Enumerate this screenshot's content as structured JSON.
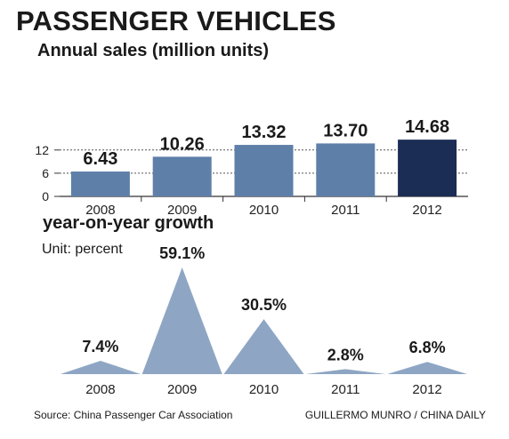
{
  "title": "PASSENGER VEHICLES",
  "sales_subtitle": "Annual sales (million units)",
  "growth_subtitle": "year-on-year growth",
  "growth_unit": "Unit: percent",
  "source": "Source: China Passenger Car Association",
  "credit": "GUILLERMO MUNRO / CHINA DAILY",
  "colors": {
    "bar": "#5e7fa8",
    "bar_highlight": "#1b2c55",
    "triangle": "#8ea6c4",
    "axis": "#333333"
  },
  "chart_data": [
    {
      "type": "bar",
      "title": "Annual sales (million units)",
      "categories": [
        "2008",
        "2009",
        "2010",
        "2011",
        "2012"
      ],
      "values": [
        6.43,
        10.26,
        13.32,
        13.7,
        14.68
      ],
      "value_labels": [
        "6.43",
        "10.26",
        "13.32",
        "13.70",
        "14.68"
      ],
      "yticks": [
        0,
        6,
        12
      ],
      "ylim": [
        0,
        20
      ],
      "grid": "dashed at 6 and 12",
      "highlight": "2012"
    },
    {
      "type": "area",
      "title": "year-on-year growth",
      "unit": "Unit: percent",
      "categories": [
        "2008",
        "2009",
        "2010",
        "2011",
        "2012"
      ],
      "values": [
        7.4,
        59.1,
        30.5,
        2.8,
        6.8
      ],
      "value_labels": [
        "7.4%",
        "59.1%",
        "30.5%",
        "2.8%",
        "6.8%"
      ]
    }
  ]
}
